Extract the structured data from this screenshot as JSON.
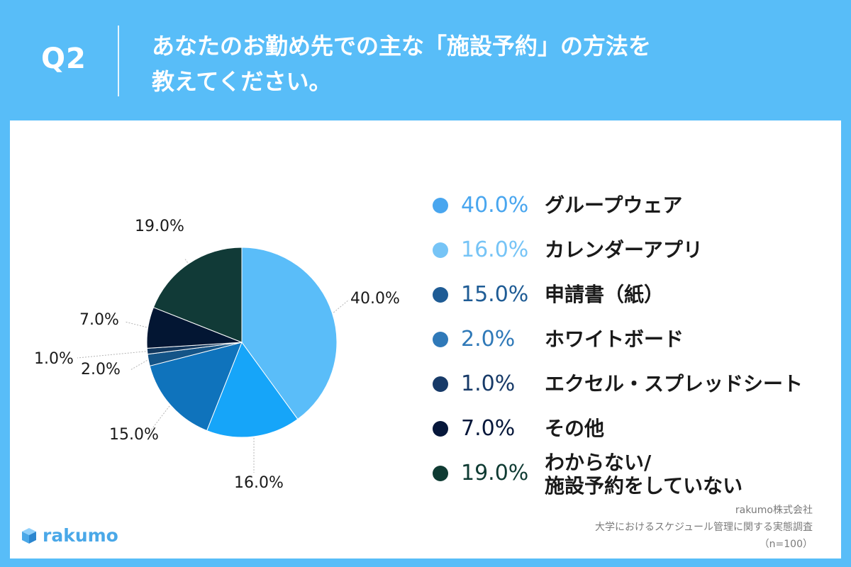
{
  "header": {
    "q_label": "Q2",
    "question_line1": "あなたのお勤め先での主な「施設予約」の方法を",
    "question_line2": "教えてください。"
  },
  "chart_data": {
    "type": "pie",
    "series": [
      {
        "label": "グループウェア",
        "value": 40.0,
        "display": "40.0%",
        "color": "#5abdf9",
        "legend_color": "#49a6ef"
      },
      {
        "label": "カレンダーアプリ",
        "value": 16.0,
        "display": "16.0%",
        "color": "#16a5f9",
        "legend_color": "#76c4f6"
      },
      {
        "label": "申請書（紙）",
        "value": 15.0,
        "display": "15.0%",
        "color": "#0f73bc",
        "legend_color": "#1f5c95"
      },
      {
        "label": "ホワイトボード",
        "value": 2.0,
        "display": "2.0%",
        "color": "#145487",
        "legend_color": "#2f79b8"
      },
      {
        "label": "エクセル・スプレッドシート",
        "value": 1.0,
        "display": "1.0%",
        "color": "#12375d",
        "legend_color": "#173a68"
      },
      {
        "label": "その他",
        "value": 7.0,
        "display": "7.0%",
        "color": "#031633",
        "legend_color": "#06173a"
      },
      {
        "label": "わからない/\n施設予約をしていない",
        "value": 19.0,
        "display": "19.0%",
        "color": "#113a37",
        "legend_color": "#0f3b33"
      }
    ]
  },
  "source": {
    "company": "rakumo株式会社",
    "survey": "大学におけるスケジュール管理に関する実態調査",
    "n": "（n=100）"
  },
  "brand": {
    "name": "rakumo",
    "color": "#4aa8e8"
  }
}
